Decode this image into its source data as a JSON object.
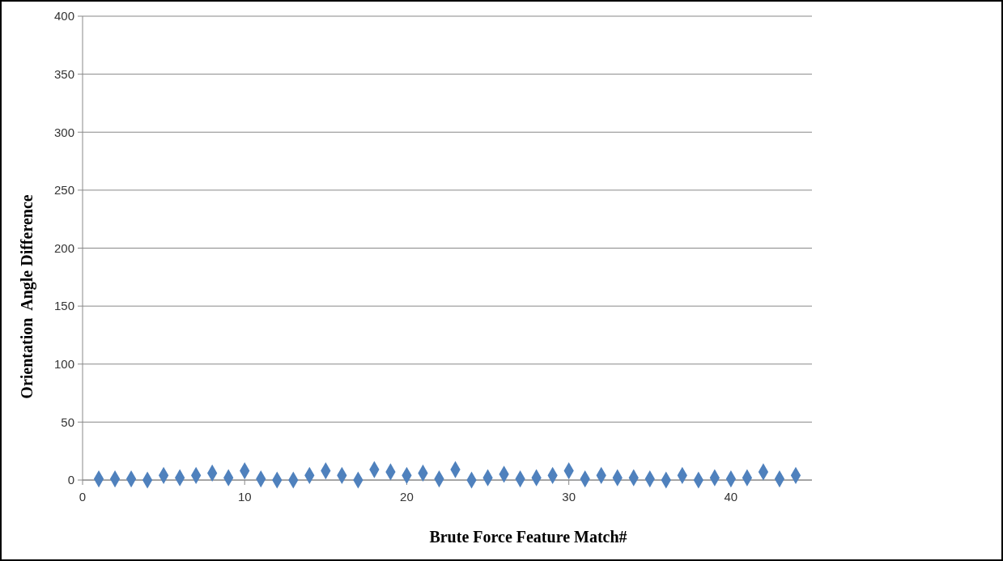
{
  "chart_data": {
    "type": "scatter",
    "xlabel": "Brute Force Feature Match#",
    "ylabel": "Orientation  Angle Difference",
    "x": [
      1,
      2,
      3,
      4,
      5,
      6,
      7,
      8,
      9,
      10,
      11,
      12,
      13,
      14,
      15,
      16,
      17,
      18,
      19,
      20,
      21,
      22,
      23,
      24,
      25,
      26,
      27,
      28,
      29,
      30,
      31,
      32,
      33,
      34,
      35,
      36,
      37,
      38,
      39,
      40,
      41,
      42,
      43,
      44
    ],
    "series": [
      {
        "color": "#4f81bd",
        "values": [
          1,
          1,
          1,
          0,
          4,
          2,
          4,
          6,
          2,
          8,
          1,
          0,
          0,
          4,
          8,
          4,
          0,
          9,
          7,
          4,
          6,
          1,
          9,
          0,
          2,
          5,
          1,
          2,
          4,
          8,
          1,
          4,
          2,
          2,
          1,
          0,
          4,
          0,
          2,
          1,
          2,
          7,
          1,
          4
        ]
      }
    ],
    "xlim": [
      0,
      45
    ],
    "xticks": [
      0,
      10,
      20,
      30,
      40
    ],
    "ylim": [
      0,
      400
    ],
    "yticks": [
      0,
      50,
      100,
      150,
      200,
      250,
      300,
      350,
      400
    ],
    "grid": "y",
    "marker": "diamond"
  }
}
